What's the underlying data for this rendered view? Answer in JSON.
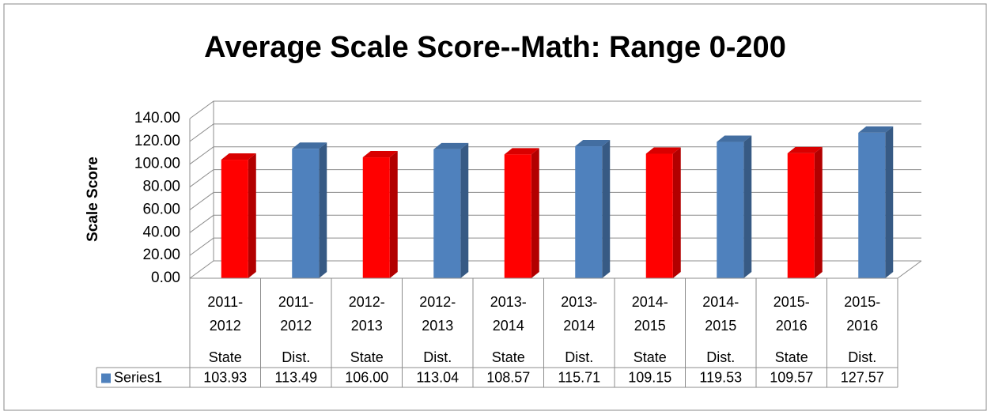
{
  "chart_data": {
    "type": "bar3d",
    "title": "Average Scale Score--Math: Range 0-200",
    "y_label": "Scale Score",
    "categories": [
      [
        "2011-",
        "2012",
        "State"
      ],
      [
        "2011-",
        "2012",
        "Dist."
      ],
      [
        "2012-",
        "2013",
        "State"
      ],
      [
        "2012-",
        "2013",
        "Dist."
      ],
      [
        "2013-",
        "2014",
        "State"
      ],
      [
        "2013-",
        "2014",
        "Dist."
      ],
      [
        "2014-",
        "2015",
        "State"
      ],
      [
        "2014-",
        "2015",
        "Dist."
      ],
      [
        "2015-",
        "2016",
        "State"
      ],
      [
        "2015-",
        "2016",
        "Dist."
      ]
    ],
    "series": [
      {
        "name": "Series1",
        "color": "#4f81bd",
        "colors": [
          "#ff0000",
          "#4f81bd",
          "#ff0000",
          "#4f81bd",
          "#ff0000",
          "#4f81bd",
          "#ff0000",
          "#4f81bd",
          "#ff0000",
          "#4f81bd"
        ],
        "values": [
          103.93,
          113.49,
          106,
          113.04,
          108.57,
          115.71,
          109.15,
          119.53,
          109.57,
          127.57
        ],
        "value_labels": [
          "103.93",
          "113.49",
          "106.00",
          "113.04",
          "108.57",
          "115.71",
          "109.15",
          "119.53",
          "109.57",
          "127.57"
        ]
      }
    ],
    "ylim": [
      0,
      140
    ],
    "yticks": [
      {
        "value": 0,
        "label": "0.00"
      },
      {
        "value": 20,
        "label": "20.00"
      },
      {
        "value": 40,
        "label": "40.00"
      },
      {
        "value": 60,
        "label": "60.00"
      },
      {
        "value": 80,
        "label": "80.00"
      },
      {
        "value": 100,
        "label": "100.00"
      },
      {
        "value": 120,
        "label": "120.00"
      },
      {
        "value": 140,
        "label": "140.00"
      }
    ],
    "grid": true,
    "data_table": true
  }
}
